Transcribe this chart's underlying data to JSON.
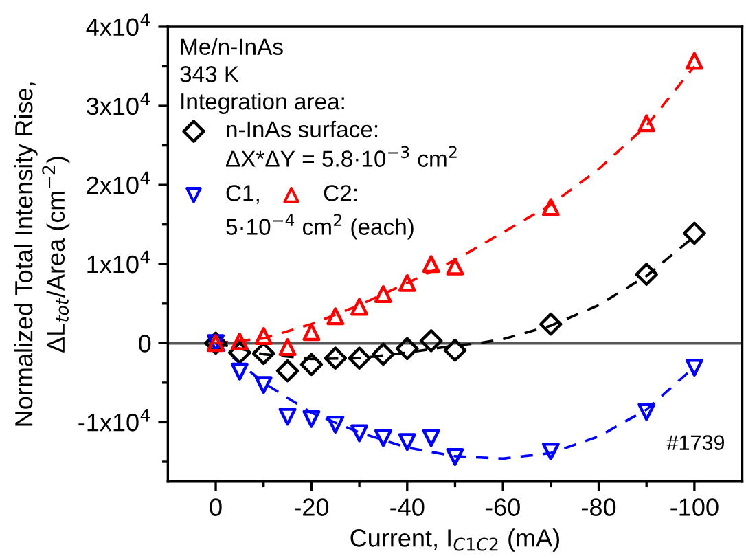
{
  "chart_data": {
    "type": "scatter",
    "xlabel": "Current, I$_{C1C2}$ (mA)",
    "ylabel": "Normalized Total Intensity Rise,\nΔL$_{tot}$/Area (cm$^{−2}$)",
    "xlim": [
      10,
      -110
    ],
    "ylim": [
      -17500,
      40000
    ],
    "xticks": [
      0,
      -20,
      -40,
      -60,
      -80,
      -100,
      {
        "value": -10,
        "label": null
      },
      {
        "value": -30,
        "label": null
      },
      {
        "value": -50,
        "label": null
      },
      {
        "value": -70,
        "label": null
      },
      {
        "value": -90,
        "label": null
      }
    ],
    "yticks": [
      {
        "value": -10000,
        "label": "-1x10$^{4}$"
      },
      0,
      {
        "value": 10000,
        "label": "1x10$^{4}$"
      },
      {
        "value": 20000,
        "label": "2x10$^{4}$"
      },
      {
        "value": 30000,
        "label": "3x10$^{4}$"
      },
      {
        "value": 40000,
        "label": "4x10$^{4}$"
      },
      {
        "value": -15000,
        "label": null
      },
      {
        "value": -5000,
        "label": null
      },
      {
        "value": 5000,
        "label": null
      },
      {
        "value": 15000,
        "label": null
      },
      {
        "value": 25000,
        "label": null
      },
      {
        "value": 35000,
        "label": null
      }
    ],
    "grid": false,
    "legend": "top left",
    "series": [
      {
        "name": "n-InAs surface:",
        "color": "#000000",
        "marker": "diamond",
        "x": [
          0,
          -5,
          -10,
          -15,
          -20,
          -25,
          -30,
          -35,
          -40,
          -45,
          -50,
          -70,
          -90,
          -100
        ],
        "values": [
          0,
          -1200,
          -1300,
          -3500,
          -2700,
          -1900,
          -1900,
          -1400,
          -700,
          300,
          -900,
          2400,
          8700,
          13900
        ]
      },
      {
        "name": "C1,",
        "color": "#0000ff",
        "marker": "triangle_down",
        "x": [
          0,
          -5,
          -10,
          -15,
          -20,
          -25,
          -30,
          -35,
          -40,
          -45,
          -50,
          -70,
          -90,
          -100
        ],
        "values": [
          0,
          -3600,
          -5300,
          -9300,
          -9600,
          -10300,
          -11400,
          -12000,
          -12500,
          -12000,
          -14400,
          -13700,
          -8700,
          -3100
        ]
      },
      {
        "name": "C2:",
        "color": "#ff0000",
        "marker": "triangle",
        "x": [
          0,
          -5,
          -10,
          -15,
          -20,
          -25,
          -30,
          -35,
          -40,
          -45,
          -50,
          -70,
          -90,
          -100
        ],
        "values": [
          0,
          200,
          900,
          -500,
          1400,
          3400,
          4600,
          6200,
          7600,
          10000,
          9700,
          17200,
          27800,
          35700
        ]
      },
      {
        "type": "line",
        "color": "#000000",
        "line_style": "dashed",
        "x": [
          0,
          -10,
          -20,
          -30,
          -40,
          -50,
          -55,
          -60,
          -70,
          -80,
          -90,
          -100
        ],
        "values": [
          0,
          -1400,
          -2000,
          -1900,
          -1200,
          -300,
          0,
          500,
          2200,
          4800,
          8500,
          13500
        ]
      },
      {
        "type": "line",
        "color": "#0000ff",
        "line_style": "dashed",
        "x": [
          0,
          -10,
          -20,
          -30,
          -40,
          -50,
          -60,
          -70,
          -80,
          -90,
          -100
        ],
        "values": [
          0,
          -5000,
          -8800,
          -11300,
          -13200,
          -14300,
          -14600,
          -13900,
          -11800,
          -8400,
          -3000
        ]
      },
      {
        "type": "line",
        "color": "#ff0000",
        "line_style": "dashed",
        "x": [
          0,
          -10,
          -20,
          -30,
          -40,
          -50,
          -60,
          -70,
          -80,
          -90,
          -100
        ],
        "values": [
          0,
          600,
          2400,
          4800,
          7600,
          10500,
          14000,
          17500,
          22000,
          27500,
          35000
        ]
      }
    ],
    "ref_lines": [
      {
        "axis": "y",
        "value": 0,
        "color": "#555555",
        "line_style": "solid"
      }
    ],
    "annotations": [
      "Me/n-InAs",
      "343 K",
      "Integration area:",
      "ΔX*ΔY = 5.8·10$^{−3}$ cm$^{2}$",
      "5·10$^{−4}$ cm$^{2}$ (each)",
      "#1739"
    ]
  }
}
